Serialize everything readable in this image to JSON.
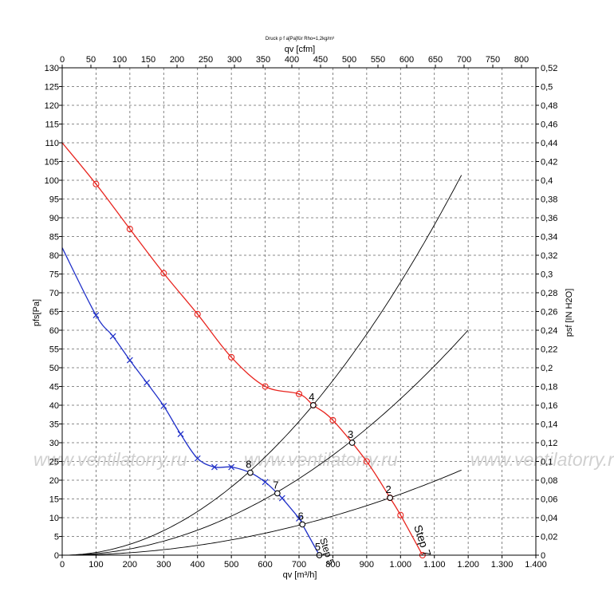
{
  "chart_data": {
    "type": "line",
    "title": "Druck p f a[Pa]für Rho=1,2kg/m³",
    "xlabel_bottom": "qv [m³/h]",
    "xlabel_top": "qv [cfm]",
    "ylabel_left": "pfs[Pa]",
    "ylabel_right": "psf [IN H2O]",
    "xlim": [
      0,
      1400
    ],
    "ylim": [
      0,
      130
    ],
    "xlim_top": [
      0,
      825
    ],
    "ylim_right": [
      0,
      0.52
    ],
    "grid": true,
    "x_ticks_bottom": [
      "0",
      "100",
      "200",
      "300",
      "400",
      "500",
      "600",
      "700",
      "800",
      "900",
      "1.000",
      "1.100",
      "1.200",
      "1.300",
      "1.400"
    ],
    "x_ticks_top": [
      "0",
      "50",
      "100",
      "150",
      "200",
      "250",
      "300",
      "350",
      "400",
      "450",
      "500",
      "550",
      "600",
      "650",
      "700",
      "750",
      "800"
    ],
    "y_ticks_left": [
      "0",
      "5",
      "10",
      "15",
      "20",
      "25",
      "30",
      "35",
      "40",
      "45",
      "50",
      "55",
      "60",
      "65",
      "70",
      "75",
      "80",
      "85",
      "90",
      "95",
      "100",
      "105",
      "110",
      "115",
      "120",
      "125",
      "130"
    ],
    "y_ticks_right": [
      "0",
      "0,02",
      "0,04",
      "0,06",
      "0,08",
      "0,1",
      "0,12",
      "0,14",
      "0,16",
      "0,18",
      "0,2",
      "0,22",
      "0,24",
      "0,26",
      "0,28",
      "0,3",
      "0,32",
      "0,34",
      "0,36",
      "0,38",
      "0,4",
      "0,42",
      "0,44",
      "0,46",
      "0,48",
      "0,5",
      "0,52"
    ],
    "series": [
      {
        "name": "Step 7",
        "color": "#e8241e",
        "marker": "circle",
        "label": "Step 7",
        "x": [
          0,
          100,
          200,
          300,
          400,
          500,
          600,
          700,
          742,
          800,
          900,
          969,
          1000,
          1065
        ],
        "y": [
          110,
          99,
          87,
          75.2,
          64.3,
          52.8,
          45,
          43,
          40,
          36,
          25,
          15.3,
          10.7,
          0
        ],
        "markers_x": [
          100,
          200,
          300,
          400,
          500,
          600,
          700,
          742,
          800,
          900,
          969,
          1000,
          1065
        ],
        "markers_y": [
          99,
          87,
          75.2,
          64.3,
          52.8,
          45,
          43,
          40,
          36,
          25,
          15.3,
          10.7,
          0
        ]
      },
      {
        "name": "Step 5",
        "color": "#1f2fc8",
        "marker": "x",
        "label": "Step 5",
        "x": [
          0,
          100,
          150,
          200,
          250,
          300,
          350,
          400,
          450,
          500,
          556,
          600,
          636,
          650,
          700,
          710,
          760
        ],
        "y": [
          82,
          64,
          58.4,
          52,
          46,
          39.8,
          32.3,
          25.8,
          23.5,
          23.5,
          22,
          19.5,
          16.5,
          15.2,
          9.8,
          8.2,
          0
        ],
        "markers_x": [
          100,
          150,
          200,
          250,
          300,
          350,
          400,
          450,
          500,
          600,
          650,
          700
        ],
        "markers_y": [
          64,
          58.4,
          52,
          46,
          39.8,
          32.3,
          25.8,
          23.5,
          23.5,
          19.5,
          15.2,
          9.8
        ]
      }
    ],
    "system_curves": [
      {
        "k": 7.28e-05,
        "x_end": 1185
      },
      {
        "k": 4.17e-05,
        "x_end": 1200
      },
      {
        "k": 1.63e-05,
        "x_end": 1180
      }
    ],
    "operating_points": [
      {
        "label": "2",
        "x": 969,
        "y": 15.3
      },
      {
        "label": "3",
        "x": 857,
        "y": 30
      },
      {
        "label": "4",
        "x": 742,
        "y": 40
      },
      {
        "label": "5",
        "x": 760,
        "y": 0
      },
      {
        "label": "6",
        "x": 710,
        "y": 8.2
      },
      {
        "label": "7",
        "x": 636,
        "y": 16.5
      },
      {
        "label": "8",
        "x": 556,
        "y": 22
      }
    ],
    "watermark": "www.ventilatorry.ru"
  }
}
